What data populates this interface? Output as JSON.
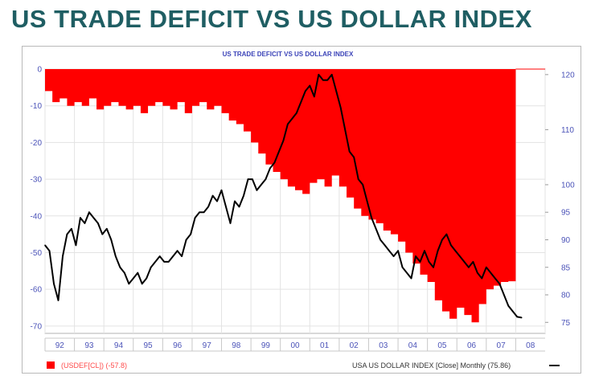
{
  "page": {
    "title": "US TRADE DEFICIT VS US DOLLAR INDEX"
  },
  "chart_data": {
    "type": "area",
    "title": "US TRADE DEFICIT VS US DOLLAR INDEX",
    "x_categories": [
      "92",
      "93",
      "94",
      "95",
      "96",
      "97",
      "98",
      "99",
      "00",
      "01",
      "02",
      "03",
      "04",
      "05",
      "06",
      "07",
      "08"
    ],
    "x_range": [
      1992.0,
      2009.0
    ],
    "y_left": {
      "range": [
        -72,
        0
      ],
      "ticks": [
        0,
        -10,
        -20,
        -30,
        -40,
        -50,
        -60,
        -70
      ],
      "tick_labels": [
        "0",
        "-10",
        "-20",
        "-30",
        "-40",
        "-50",
        "-60",
        "-70"
      ]
    },
    "y_right": {
      "range": [
        73,
        121
      ],
      "ticks": [
        120,
        110,
        100,
        95,
        90,
        85,
        80,
        75
      ],
      "tick_labels": [
        "120",
        "110",
        "100",
        "95",
        "90",
        "85",
        "80",
        "75"
      ]
    },
    "grid": true,
    "legend_position": "bottom",
    "series": [
      {
        "name": "(USDEF[CL]) (-57.8)",
        "axis": "left",
        "color": "#ff0000",
        "style": "filled-from-top",
        "x": [
          1992.0,
          1992.25,
          1992.5,
          1992.75,
          1993.0,
          1993.25,
          1993.5,
          1993.75,
          1994.0,
          1994.25,
          1994.5,
          1994.75,
          1995.0,
          1995.25,
          1995.5,
          1995.75,
          1996.0,
          1996.25,
          1996.5,
          1996.75,
          1997.0,
          1997.25,
          1997.5,
          1997.75,
          1998.0,
          1998.25,
          1998.5,
          1998.75,
          1999.0,
          1999.25,
          1999.5,
          1999.75,
          2000.0,
          2000.25,
          2000.5,
          2000.75,
          2001.0,
          2001.25,
          2001.5,
          2001.75,
          2002.0,
          2002.25,
          2002.5,
          2002.75,
          2003.0,
          2003.25,
          2003.5,
          2003.75,
          2004.0,
          2004.25,
          2004.5,
          2004.75,
          2005.0,
          2005.25,
          2005.5,
          2005.75,
          2006.0,
          2006.25,
          2006.5,
          2006.75,
          2007.0,
          2007.25,
          2007.5,
          2007.75
        ],
        "values": [
          -6,
          -9,
          -8,
          -10,
          -9,
          -10,
          -8,
          -11,
          -10,
          -9,
          -10,
          -11,
          -10,
          -12,
          -10,
          -9,
          -10,
          -11,
          -9,
          -12,
          -10,
          -9,
          -11,
          -10,
          -12,
          -14,
          -15,
          -17,
          -20,
          -23,
          -26,
          -28,
          -30,
          -32,
          -33,
          -34,
          -31,
          -30,
          -32,
          -29,
          -32,
          -35,
          -38,
          -40,
          -41,
          -42,
          -44,
          -45,
          -47,
          -50,
          -53,
          -56,
          -58,
          -63,
          -66,
          -68,
          -65,
          -67,
          -69,
          -64,
          -60,
          -59,
          -58,
          -57.8
        ]
      },
      {
        "name": "USA US DOLLAR INDEX [Close] Monthly (75.86)",
        "axis": "right",
        "color": "#000000",
        "style": "line",
        "x": [
          1992.0,
          1992.15,
          1992.3,
          1992.45,
          1992.6,
          1992.75,
          1992.9,
          1993.05,
          1993.2,
          1993.35,
          1993.5,
          1993.65,
          1993.8,
          1993.95,
          1994.1,
          1994.25,
          1994.4,
          1994.55,
          1994.7,
          1994.85,
          1995.0,
          1995.15,
          1995.3,
          1995.45,
          1995.6,
          1995.75,
          1995.9,
          1996.05,
          1996.2,
          1996.35,
          1996.5,
          1996.65,
          1996.8,
          1996.95,
          1997.1,
          1997.25,
          1997.4,
          1997.55,
          1997.7,
          1997.85,
          1998.0,
          1998.15,
          1998.3,
          1998.45,
          1998.6,
          1998.75,
          1998.9,
          1999.05,
          1999.2,
          1999.35,
          1999.5,
          1999.65,
          1999.8,
          1999.95,
          2000.1,
          2000.25,
          2000.4,
          2000.55,
          2000.7,
          2000.85,
          2001.0,
          2001.15,
          2001.3,
          2001.45,
          2001.6,
          2001.75,
          2001.9,
          2002.05,
          2002.2,
          2002.35,
          2002.5,
          2002.65,
          2002.8,
          2002.95,
          2003.1,
          2003.25,
          2003.4,
          2003.55,
          2003.7,
          2003.85,
          2004.0,
          2004.15,
          2004.3,
          2004.45,
          2004.6,
          2004.75,
          2004.9,
          2005.05,
          2005.2,
          2005.35,
          2005.5,
          2005.65,
          2005.8,
          2005.95,
          2006.1,
          2006.25,
          2006.4,
          2006.55,
          2006.7,
          2006.85,
          2007.0,
          2007.15,
          2007.3,
          2007.45,
          2007.6,
          2007.75,
          2007.9,
          2008.05,
          2008.2
        ],
        "values": [
          89,
          88,
          82,
          79,
          87,
          91,
          92,
          89,
          94,
          93,
          95,
          94,
          93,
          91,
          92,
          90,
          87,
          85,
          84,
          82,
          83,
          84,
          82,
          83,
          85,
          86,
          87,
          86,
          86,
          87,
          88,
          87,
          90,
          91,
          94,
          95,
          95,
          96,
          98,
          97,
          99,
          96,
          93,
          97,
          96,
          98,
          101,
          101,
          99,
          100,
          101,
          103,
          104,
          106,
          108,
          111,
          112,
          113,
          115,
          117,
          118,
          116,
          120,
          119,
          119,
          120,
          117,
          114,
          110,
          106,
          105,
          101,
          100,
          97,
          94,
          92,
          90,
          89,
          88,
          87,
          88,
          85,
          84,
          83,
          87,
          86,
          88,
          86,
          85,
          88,
          90,
          91,
          89,
          88,
          87,
          86,
          85,
          86,
          84,
          83,
          85,
          84,
          83,
          82,
          80,
          78,
          77,
          76,
          75.86
        ]
      }
    ]
  },
  "legend": {
    "left_label": "(USDEF[CL]) (-57.8)",
    "right_label": "USA  US DOLLAR INDEX [Close] Monthly (75.86)",
    "left_color": "#ff0000",
    "right_color": "#000000"
  }
}
